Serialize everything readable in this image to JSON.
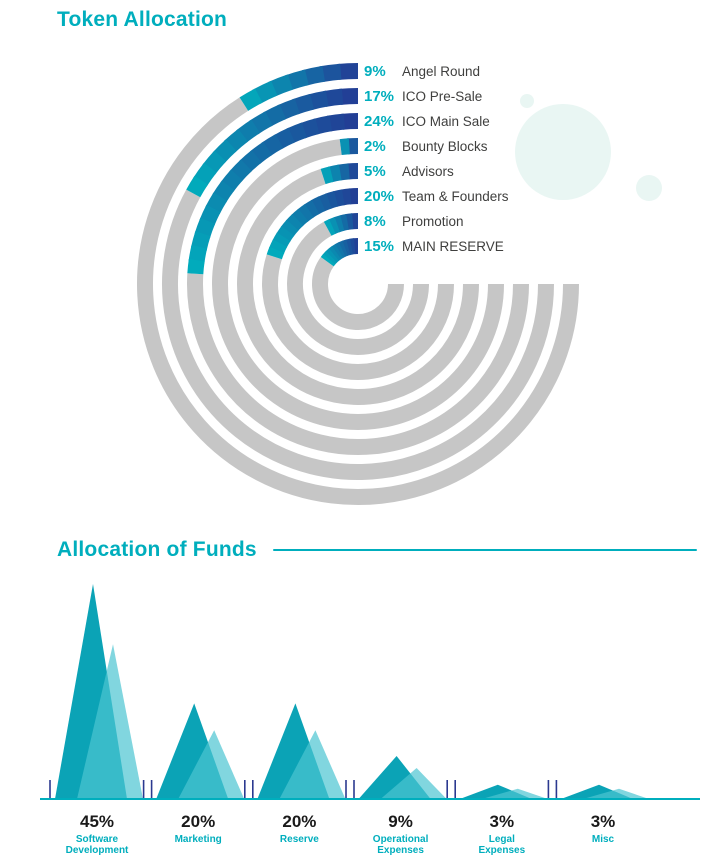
{
  "colors": {
    "accent_teal": "#00aebd",
    "navy": "#233b94",
    "track_gray": "#c6c6c6",
    "tick_navy": "#2b3990",
    "label_dark": "#3f3f3e",
    "pct_black": "#1a1a1a",
    "decor_mint": "#e9f6f3",
    "funds_dark": "#0ba3b6",
    "funds_light": "#4cc4d2"
  },
  "chart_data": [
    {
      "type": "bar",
      "variant": "concentric-radial-bars",
      "title": "Token Allocation",
      "categories": [
        "Angel Round",
        "ICO Pre-Sale",
        "ICO Main Sale",
        "Bounty Blocks",
        "Advisors",
        "Team & Founders",
        "Promotion",
        "MAIN RESERVE"
      ],
      "values": [
        9,
        17,
        24,
        2,
        5,
        20,
        8,
        15
      ],
      "unit": "%",
      "order": "outermost-ring-to-innermost-ring",
      "bar_start": "12 o'clock sweeping counterclockwise, length = value% of 360deg",
      "track_span": "from 12 o'clock counterclockwise to 3 o'clock (upper-right quadrant open for legend)",
      "gradient": [
        "#233b94",
        "#00aebd"
      ],
      "track_color": "#c6c6c6",
      "legend_position": "top-right, one row per ring aligned with ring top"
    },
    {
      "type": "area",
      "variant": "overlapping-triangle-peaks",
      "title": "Allocation of Funds",
      "categories": [
        "Software Development",
        "Marketing",
        "Reserve",
        "Operational Expenses",
        "Legal Expenses",
        "Misc"
      ],
      "values": [
        45,
        20,
        20,
        9,
        3,
        3
      ],
      "unit": "%",
      "ylim": [
        0,
        45
      ],
      "baseline": "teal horizontal axis with small navy tick pairs between categories",
      "colors": {
        "dark": "#0ba3b6",
        "light": "#4cc4d2"
      }
    }
  ]
}
